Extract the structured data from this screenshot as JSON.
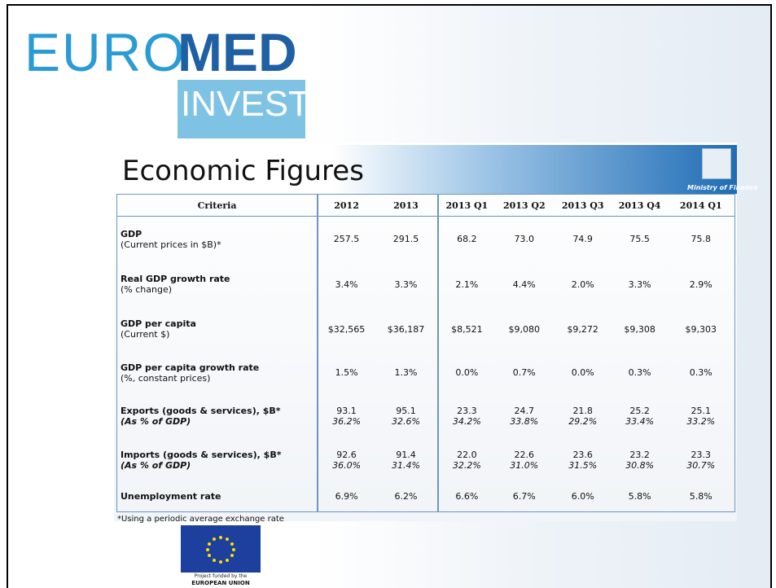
{
  "logo": {
    "euro": "EURO",
    "med": "MED",
    "invest": "INVEST"
  },
  "slide": {
    "title": "Economic Figures",
    "ministry": "Ministry of Finance"
  },
  "table": {
    "header": [
      "Criteria",
      "2012",
      "2013",
      "2013 Q1",
      "2013 Q2",
      "2013 Q3",
      "2013 Q4",
      "2014 Q1"
    ],
    "rows": [
      {
        "label": "GDP",
        "note": "(Current prices in $B)*",
        "values": [
          "257.5",
          "291.5",
          "68.2",
          "73.0",
          "74.9",
          "75.5",
          "75.8"
        ]
      },
      {
        "label": "Real GDP growth rate",
        "note": "(% change)",
        "values": [
          "3.4%",
          "3.3%",
          "2.1%",
          "4.4%",
          "2.0%",
          "3.3%",
          "2.9%"
        ]
      },
      {
        "label": "GDP per capita",
        "note": "(Current $)",
        "values": [
          "$32,565",
          "$36,187",
          "$8,521",
          "$9,080",
          "$9,272",
          "$9,308",
          "$9,303"
        ]
      },
      {
        "label": "GDP per capita growth rate",
        "note": "(%, constant prices)",
        "values": [
          "1.5%",
          "1.3%",
          "0.0%",
          "0.7%",
          "0.0%",
          "0.3%",
          "0.3%"
        ]
      },
      {
        "label": "Exports (goods & services), $B*",
        "share_label": "(As % of GDP)",
        "values": [
          "93.1",
          "95.1",
          "23.3",
          "24.7",
          "21.8",
          "25.2",
          "25.1"
        ],
        "shares": [
          "36.2%",
          "32.6%",
          "34.2%",
          "33.8%",
          "29.2%",
          "33.4%",
          "33.2%"
        ]
      },
      {
        "label": "Imports (goods & services), $B*",
        "share_label": "(As % of GDP)",
        "values": [
          "92.6",
          "91.4",
          "22.0",
          "22.6",
          "23.6",
          "23.2",
          "23.3"
        ],
        "shares": [
          "36.0%",
          "31.4%",
          "32.2%",
          "31.0%",
          "31.5%",
          "30.8%",
          "30.7%"
        ]
      },
      {
        "label": "Unemployment rate",
        "values": [
          "6.9%",
          "6.2%",
          "6.6%",
          "6.7%",
          "6.0%",
          "5.8%",
          "5.8%"
        ]
      }
    ]
  },
  "footnote": "*Using a periodic average exchange rate",
  "funding": {
    "line1": "Project funded by the",
    "line2": "EUROPEAN UNION"
  }
}
